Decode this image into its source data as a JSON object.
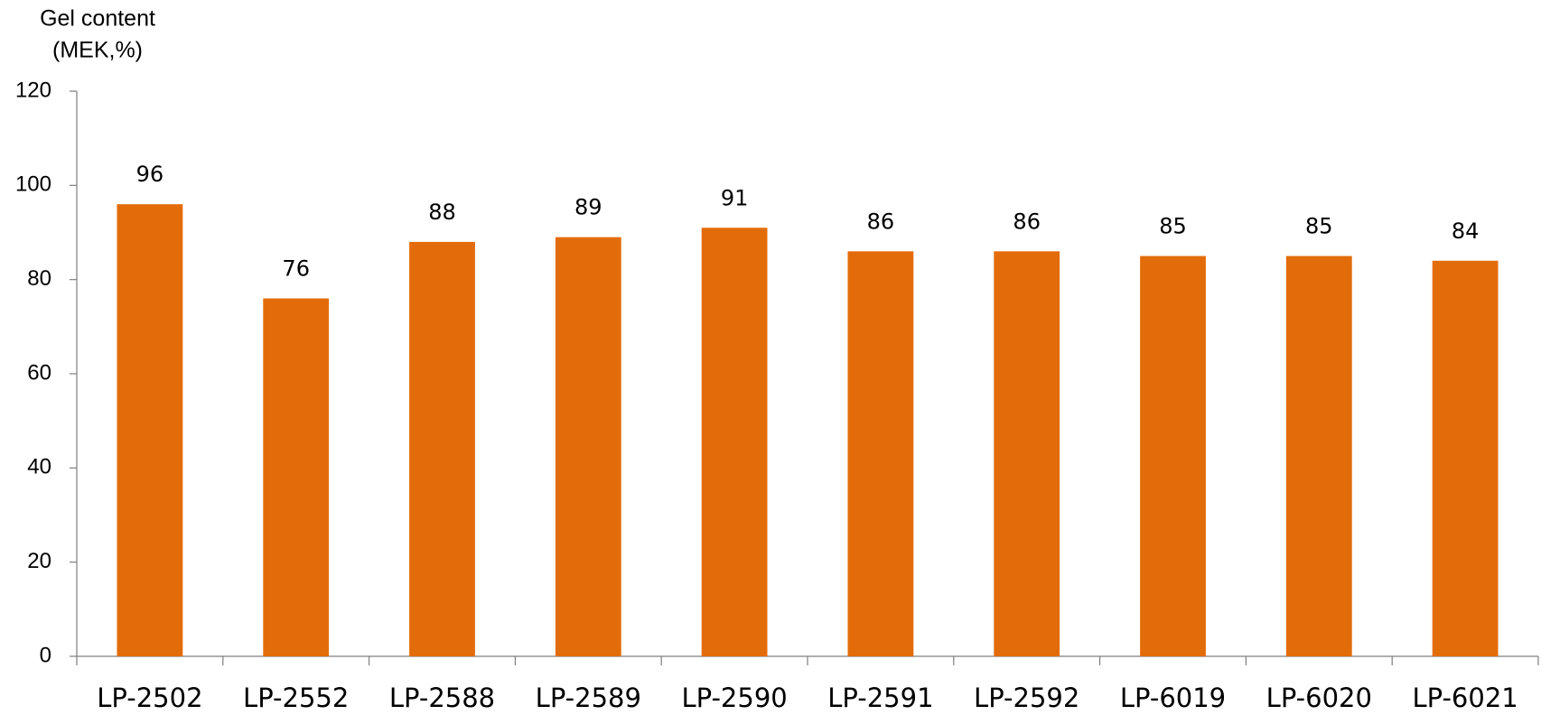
{
  "chart_data": {
    "type": "bar",
    "y_label": [
      "Gel content",
      "(MEK,%)"
    ],
    "categories": [
      "LP-2502",
      "LP-2552",
      "LP-2588",
      "LP-2589",
      "LP-2590",
      "LP-2591",
      "LP-2592",
      "LP-6019",
      "LP-6020",
      "LP-6021"
    ],
    "values": [
      96,
      76,
      88,
      89,
      91,
      86,
      86,
      85,
      85,
      84
    ],
    "color": "#e36c0a",
    "ylim": [
      0,
      120
    ],
    "yticks": [
      0,
      20,
      40,
      60,
      80,
      100,
      120
    ],
    "grid": false,
    "data_labels": true
  }
}
